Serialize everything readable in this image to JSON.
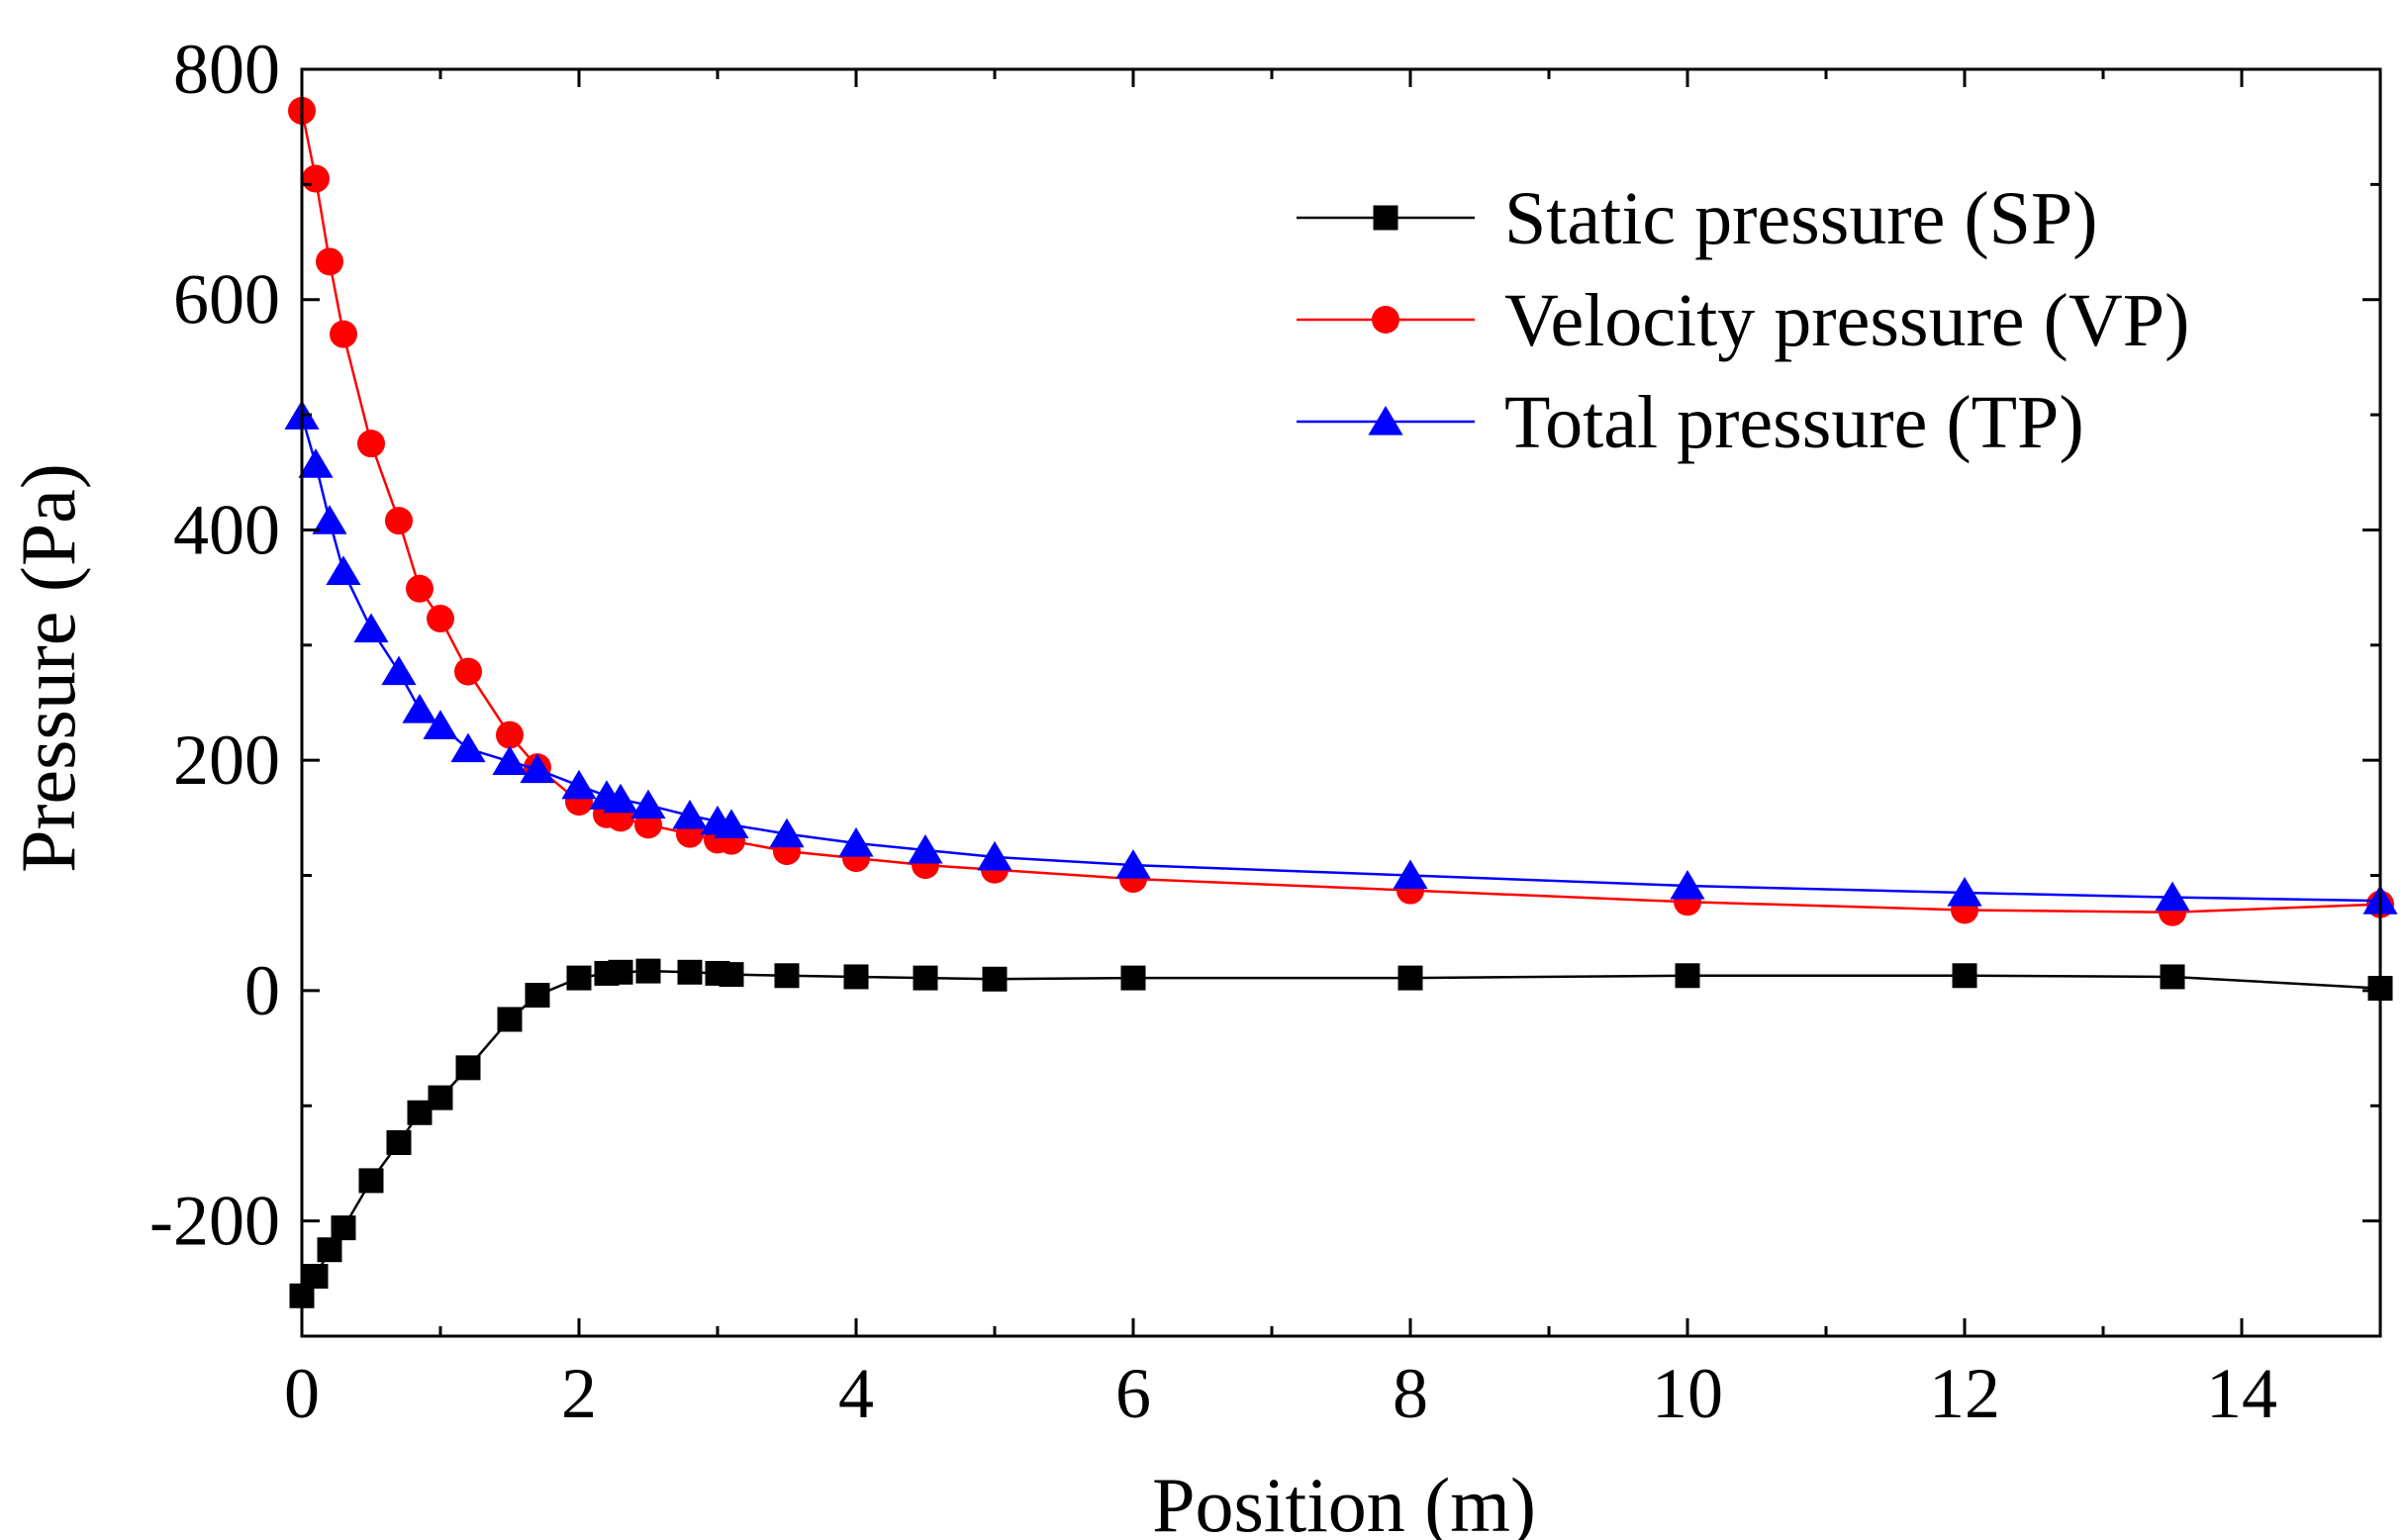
{
  "chart_data": {
    "type": "line",
    "title": "",
    "xlabel": "Position (m)",
    "ylabel": "Pressure (Pa)",
    "xlim": [
      0,
      15
    ],
    "ylim": [
      -300,
      800
    ],
    "x_major_ticks": [
      0,
      2,
      4,
      6,
      8,
      10,
      12,
      14
    ],
    "x_tick_labels": [
      "0",
      "2",
      "4",
      "6",
      "8",
      "10",
      "12",
      "14"
    ],
    "x_minor_ticks": [
      1,
      3,
      5,
      7,
      9,
      11,
      13,
      15
    ],
    "y_major_ticks": [
      -200,
      0,
      200,
      400,
      600,
      800
    ],
    "y_tick_labels": [
      "-200",
      "0",
      "200",
      "400",
      "600",
      "800"
    ],
    "y_minor_ticks": [
      -300,
      -100,
      100,
      300,
      500,
      700
    ],
    "grid": false,
    "legend_position": "top-right",
    "series": [
      {
        "name": "Static pressure (SP)",
        "color": "#000000",
        "marker": "square",
        "x": [
          0,
          0.1,
          0.2,
          0.3,
          0.5,
          0.7,
          0.85,
          1.0,
          1.2,
          1.5,
          1.7,
          2.0,
          2.2,
          2.3,
          2.5,
          2.8,
          3.0,
          3.1,
          3.5,
          4.0,
          4.5,
          5.0,
          6.0,
          8.0,
          10.0,
          12.0,
          13.5,
          15.0
        ],
        "values": [
          -265,
          -248,
          -225,
          -206,
          -165,
          -132,
          -106,
          -93,
          -67,
          -25,
          -4,
          11,
          15,
          16,
          17,
          16,
          15,
          14,
          13,
          12,
          11,
          10,
          11,
          11,
          13,
          13,
          12,
          2
        ]
      },
      {
        "name": "Velocity pressure (VP)",
        "color": "#ff0000",
        "marker": "circle",
        "x": [
          0,
          0.1,
          0.2,
          0.3,
          0.5,
          0.7,
          0.85,
          1.0,
          1.2,
          1.5,
          1.7,
          2.0,
          2.2,
          2.3,
          2.5,
          2.8,
          3.0,
          3.1,
          3.5,
          4.0,
          4.5,
          5.0,
          6.0,
          8.0,
          10.0,
          12.0,
          13.5,
          15.0
        ],
        "values": [
          764,
          705,
          633,
          570,
          475,
          408,
          349,
          323,
          277,
          222,
          194,
          164,
          153,
          150,
          144,
          136,
          131,
          130,
          121,
          115,
          109,
          105,
          97,
          87,
          77,
          70,
          68,
          75
        ]
      },
      {
        "name": "Total pressure (TP)",
        "color": "#0000ff",
        "marker": "triangle",
        "x": [
          0,
          0.1,
          0.2,
          0.3,
          0.5,
          0.7,
          0.85,
          1.0,
          1.2,
          1.5,
          1.7,
          2.0,
          2.2,
          2.3,
          2.5,
          2.8,
          3.0,
          3.1,
          3.5,
          4.0,
          4.5,
          5.0,
          6.0,
          8.0,
          10.0,
          12.0,
          13.5,
          15.0
        ],
        "values": [
          499,
          457,
          408,
          364,
          314,
          277,
          244,
          230,
          210,
          199,
          192,
          178,
          169,
          166,
          161,
          152,
          147,
          144,
          136,
          128,
          122,
          116,
          109,
          100,
          91,
          85,
          81,
          78
        ]
      }
    ]
  }
}
